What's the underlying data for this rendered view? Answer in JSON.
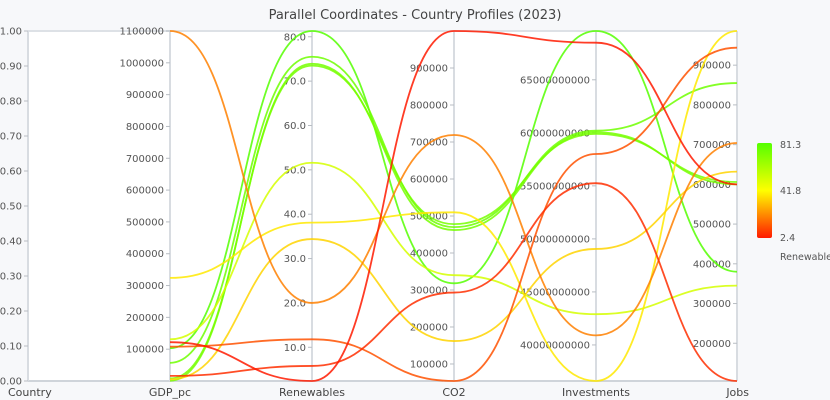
{
  "chart_data": {
    "type": "parallel-coordinates",
    "title": "Parallel Coordinates - Country Profiles (2023)",
    "axes": [
      {
        "name": "Country",
        "range": [
          0,
          1
        ],
        "ticks": [
          0,
          0.1,
          0.2,
          0.3,
          0.4,
          0.5,
          0.6,
          0.7,
          0.8,
          0.9,
          1.0
        ],
        "tick_labels": [
          "0.00",
          "0.10",
          "0.20",
          "0.30",
          "0.40",
          "0.50",
          "0.60",
          "0.70",
          "0.80",
          "0.90",
          "1.00"
        ]
      },
      {
        "name": "GDP_pc",
        "range": [
          0,
          1100000
        ],
        "ticks": [
          100000,
          200000,
          300000,
          400000,
          500000,
          600000,
          700000,
          800000,
          900000,
          1000000,
          1100000
        ],
        "tick_labels": [
          "100000",
          "200000",
          "300000",
          "400000",
          "500000",
          "600000",
          "700000",
          "800000",
          "900000",
          "1000000",
          "1100000"
        ]
      },
      {
        "name": "Renewables",
        "range": [
          2.4,
          81.3
        ],
        "ticks": [
          10,
          20,
          30,
          40,
          50,
          60,
          70,
          80
        ],
        "tick_labels": [
          "10.0",
          "20.0",
          "30.0",
          "40.0",
          "50.0",
          "60.0",
          "70.0",
          "80.0"
        ]
      },
      {
        "name": "CO2",
        "range": [
          54000,
          1000000
        ],
        "ticks": [
          100000,
          200000,
          300000,
          400000,
          500000,
          600000,
          700000,
          800000,
          900000
        ],
        "tick_labels": [
          "100000",
          "200000",
          "300000",
          "400000",
          "500000",
          "600000",
          "700000",
          "800000",
          "900000"
        ]
      },
      {
        "name": "Investments",
        "range": [
          36600000000,
          69600000000
        ],
        "ticks": [
          40000000000,
          45000000000,
          50000000000,
          55000000000,
          60000000000,
          65000000000
        ],
        "tick_labels": [
          "40000000000",
          "45000000000",
          "50000000000",
          "55000000000",
          "60000000000",
          "65000000000"
        ]
      },
      {
        "name": "Jobs",
        "range": [
          105000,
          986000
        ],
        "ticks": [
          200000,
          300000,
          400000,
          500000,
          600000,
          700000,
          800000,
          900000
        ],
        "tick_labels": [
          "200000",
          "300000",
          "400000",
          "500000",
          "600000",
          "700000",
          "800000",
          "900000"
        ]
      }
    ],
    "series": [
      {
        "GDP_pc": 103000,
        "Renewables": 81.3,
        "CO2": 318000,
        "Investments": 69600000000,
        "Jobs": 380000
      },
      {
        "GDP_pc": 57000,
        "Renewables": 75.5,
        "CO2": 470000,
        "Investments": 60200000000,
        "Jobs": 855000
      },
      {
        "GDP_pc": 1000,
        "Renewables": 73.9,
        "CO2": 462000,
        "Investments": 60050000000,
        "Jobs": 600000
      },
      {
        "GDP_pc": 8000,
        "Renewables": 73.5,
        "CO2": 478000,
        "Investments": 59900000000,
        "Jobs": 606000
      },
      {
        "GDP_pc": 131000,
        "Renewables": 51.6,
        "CO2": 340000,
        "Investments": 42900000000,
        "Jobs": 345000
      },
      {
        "GDP_pc": 324000,
        "Renewables": 38.1,
        "CO2": 510000,
        "Investments": 36600000000,
        "Jobs": 986000
      },
      {
        "GDP_pc": 5000,
        "Renewables": 34.4,
        "CO2": 162000,
        "Investments": 49050000000,
        "Jobs": 632000
      },
      {
        "GDP_pc": 1100000,
        "Renewables": 20.0,
        "CO2": 719000,
        "Investments": 40900000000,
        "Jobs": 704000
      },
      {
        "GDP_pc": 108000,
        "Renewables": 11.8,
        "CO2": 54000,
        "Investments": 58000000000,
        "Jobs": 944000
      },
      {
        "GDP_pc": 16000,
        "Renewables": 5.8,
        "CO2": 293000,
        "Investments": 55250000000,
        "Jobs": 105000
      },
      {
        "GDP_pc": 122000,
        "Renewables": 2.4,
        "CO2": 1000000,
        "Investments": 68500000000,
        "Jobs": 600000
      }
    ],
    "color_by": "Renewables",
    "colorbar": {
      "label": "Renewables",
      "min": 2.4,
      "mid": 41.8,
      "max": 81.3,
      "min_label": "2.4",
      "mid_label": "41.8",
      "max_label": "81.3",
      "colors": {
        "low": "#ff1a00",
        "mid": "#ffff00",
        "high": "#55ff00"
      }
    }
  }
}
